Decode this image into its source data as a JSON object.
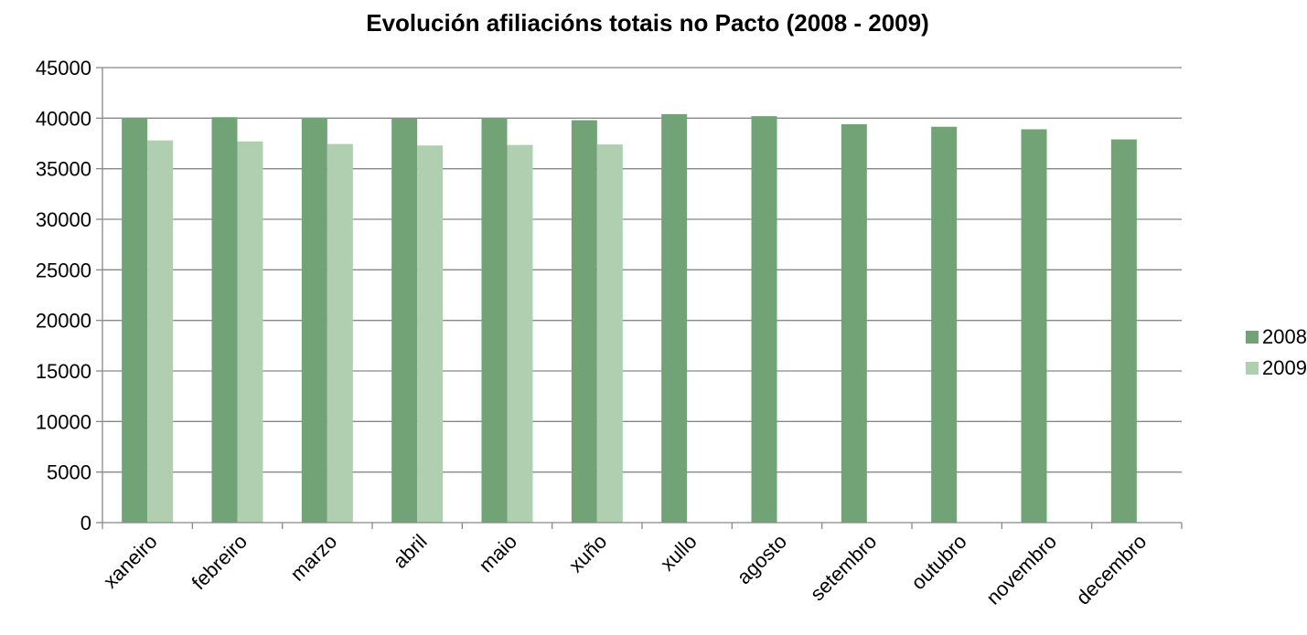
{
  "chart_data": {
    "type": "bar",
    "title": "Evolución afiliacións totais no Pacto (2008 - 2009)",
    "xlabel": "",
    "ylabel": "",
    "ylim": [
      0,
      45000
    ],
    "yticks": [
      0,
      5000,
      10000,
      15000,
      20000,
      25000,
      30000,
      35000,
      40000,
      45000
    ],
    "grid": true,
    "legend_position": "right",
    "categories": [
      "xaneiro",
      "febreiro",
      "marzo",
      "abril",
      "maio",
      "xuño",
      "xullo",
      "agosto",
      "setembro",
      "outubro",
      "novembro",
      "decembro"
    ],
    "series": [
      {
        "name": "2008",
        "color": "#72a376",
        "values": [
          40000,
          40100,
          40050,
          39950,
          40000,
          39800,
          40400,
          40200,
          39400,
          39150,
          38900,
          37900
        ]
      },
      {
        "name": "2009",
        "color": "#b0cfb1",
        "values": [
          37800,
          37700,
          37450,
          37300,
          37350,
          37400,
          null,
          null,
          null,
          null,
          null,
          null
        ]
      }
    ]
  }
}
